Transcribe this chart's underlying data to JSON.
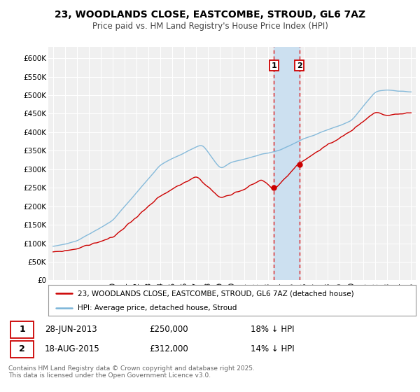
{
  "title": "23, WOODLANDS CLOSE, EASTCOMBE, STROUD, GL6 7AZ",
  "subtitle": "Price paid vs. HM Land Registry's House Price Index (HPI)",
  "legend_line1": "23, WOODLANDS CLOSE, EASTCOMBE, STROUD, GL6 7AZ (detached house)",
  "legend_line2": "HPI: Average price, detached house, Stroud",
  "footer": "Contains HM Land Registry data © Crown copyright and database right 2025.\nThis data is licensed under the Open Government Licence v3.0.",
  "transaction1_date": "28-JUN-2013",
  "transaction1_price": "£250,000",
  "transaction1_hpi": "18% ↓ HPI",
  "transaction2_date": "18-AUG-2015",
  "transaction2_price": "£312,000",
  "transaction2_hpi": "14% ↓ HPI",
  "hpi_color": "#7ab4d8",
  "price_color": "#cc0000",
  "marker1_x_year": 2013.5,
  "marker2_x_year": 2015.65,
  "ylim": [
    0,
    620000
  ],
  "xlim_start": 1994.6,
  "xlim_end": 2025.4,
  "background_color": "#ffffff",
  "plot_bg_color": "#f0f0f0",
  "highlight_color": "#cce0f0",
  "grid_color": "#ffffff"
}
